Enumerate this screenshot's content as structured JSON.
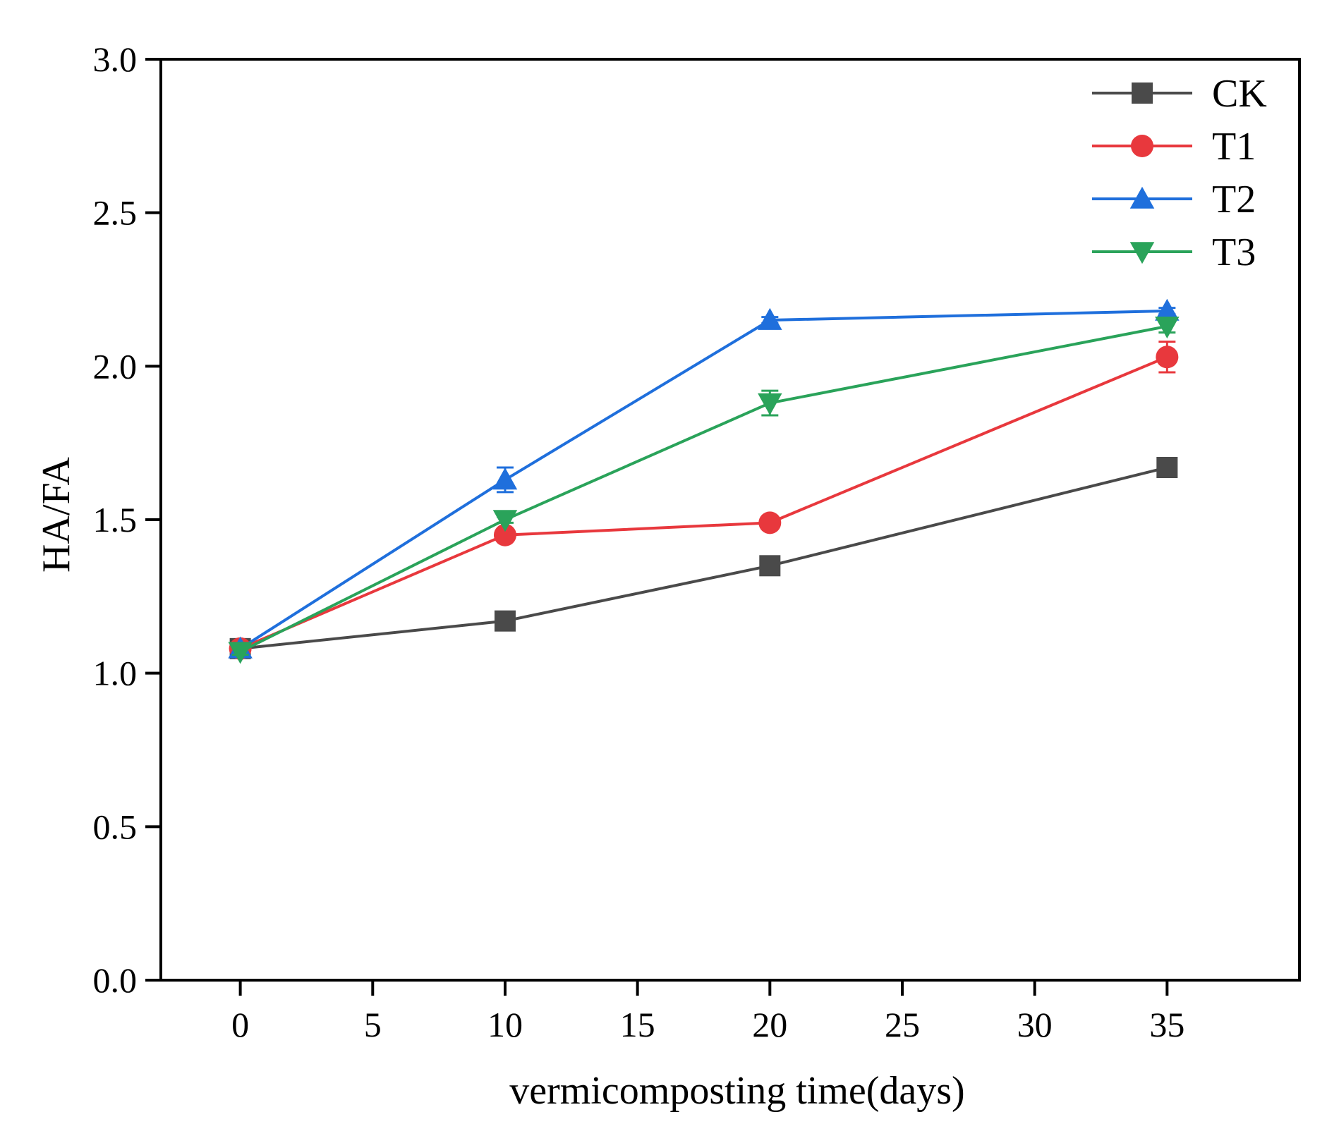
{
  "chart_data": {
    "type": "line",
    "title": "",
    "xlabel": "vermicomposting time(days)",
    "ylabel": "HA/FA",
    "xlim": [
      -3,
      40
    ],
    "ylim": [
      0.0,
      3.0
    ],
    "xticks": [
      0,
      5,
      10,
      15,
      20,
      25,
      30,
      35
    ],
    "xtick_labels": [
      "0",
      "5",
      "10",
      "15",
      "20",
      "25",
      "30",
      "35"
    ],
    "yticks": [
      0.0,
      0.5,
      1.0,
      1.5,
      2.0,
      2.5,
      3.0
    ],
    "ytick_labels": [
      "0.0",
      "0.5",
      "1.0",
      "1.5",
      "2.0",
      "2.5",
      "3.0"
    ],
    "grid": false,
    "legend_position": "top-right",
    "x": [
      0,
      10,
      20,
      35
    ],
    "series": [
      {
        "name": "CK",
        "color": "#4a4a4a",
        "marker": "square",
        "values": [
          1.08,
          1.17,
          1.35,
          1.67
        ],
        "errors": [
          0.01,
          0.01,
          0.01,
          0.01
        ]
      },
      {
        "name": "T1",
        "color": "#e8383d",
        "marker": "circle",
        "values": [
          1.08,
          1.45,
          1.49,
          2.03
        ],
        "errors": [
          0.01,
          0.02,
          0.02,
          0.05
        ]
      },
      {
        "name": "T2",
        "color": "#1f6fdc",
        "marker": "triangle-up",
        "values": [
          1.08,
          1.63,
          2.15,
          2.18
        ],
        "errors": [
          0.01,
          0.04,
          0.01,
          0.01
        ]
      },
      {
        "name": "T3",
        "color": "#2aa35a",
        "marker": "triangle-down",
        "values": [
          1.07,
          1.5,
          1.88,
          2.13
        ],
        "errors": [
          0.01,
          0.01,
          0.04,
          0.02
        ]
      }
    ]
  }
}
